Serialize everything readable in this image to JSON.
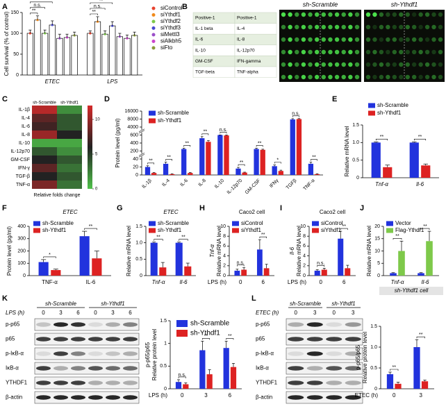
{
  "chart_data": [
    {
      "type": "bar",
      "panel": "A",
      "ylabel": "Cell survival (% of control)",
      "categories": [
        "ETEC",
        "LPS"
      ],
      "ylim": [
        0,
        150
      ],
      "yticks": [
        0,
        50,
        100,
        150
      ],
      "series": [
        {
          "name": "siControl",
          "color": "#e8432f",
          "values": [
            100,
            100
          ],
          "errors": [
            8,
            6
          ]
        },
        {
          "name": "siYthdf1",
          "color": "#f08a1c",
          "values": [
            132,
            128
          ],
          "errors": [
            10,
            12
          ]
        },
        {
          "name": "siYthdf2",
          "color": "#7ec94a",
          "values": [
            100,
            98
          ],
          "errors": [
            8,
            8
          ]
        },
        {
          "name": "siYthdf3",
          "color": "#4a4ad0",
          "values": [
            120,
            118
          ],
          "errors": [
            10,
            10
          ]
        },
        {
          "name": "siMettl3",
          "color": "#9b4fc9",
          "values": [
            88,
            92
          ],
          "errors": [
            10,
            8
          ]
        },
        {
          "name": "siAlkbh5",
          "color": "#cc44cc",
          "values": [
            90,
            88
          ],
          "errors": [
            8,
            8
          ]
        },
        {
          "name": "siFto",
          "color": "#8a9a3a",
          "values": [
            95,
            95
          ],
          "errors": [
            8,
            8
          ]
        }
      ],
      "significance": [
        [
          "**",
          "n.s.",
          "**",
          "**",
          "n.s."
        ],
        [
          "**",
          "n.s.",
          "**",
          "**",
          "n.s."
        ]
      ]
    },
    {
      "type": "dot-array",
      "panel": "B",
      "arrays": [
        "sh-Scramble",
        "sh-Ythdf1"
      ],
      "table": [
        [
          "Positive-1",
          "Positive-1"
        ],
        [
          "IL-1 beta",
          "IL-4"
        ],
        [
          "IL-6",
          "IL-8"
        ],
        [
          "IL-10",
          "IL-12p70"
        ],
        [
          "GM-CSF",
          "IFN-gamma"
        ],
        [
          "TGF-beta",
          "TNF-alpha"
        ]
      ]
    },
    {
      "type": "heatmap",
      "panel": "C",
      "columns": [
        "sh-Scramble",
        "sh-Ythdf1"
      ],
      "rows": [
        "IL-1β",
        "IL-4",
        "IL-6",
        "IL-8",
        "IL-10",
        "IL-12p70",
        "GM-CSF",
        "IFN-γ",
        "TGF-β",
        "TNF-α"
      ],
      "values": [
        [
          11,
          2
        ],
        [
          8,
          4
        ],
        [
          7,
          4
        ],
        [
          10,
          6
        ],
        [
          1,
          1
        ],
        [
          4,
          2
        ],
        [
          6,
          4
        ],
        [
          8,
          3
        ],
        [
          6,
          4
        ],
        [
          9,
          3
        ]
      ],
      "zlim": [
        0,
        12
      ],
      "zticks": [
        0,
        5,
        10
      ],
      "colors": [
        "#4fc24a",
        "#222222",
        "#d42a2a"
      ],
      "caption": "Relative folds change"
    },
    {
      "type": "bar",
      "panel": "D",
      "ylabel": "Protein level (pg/ml)",
      "broken_axis": true,
      "categories": [
        "IL-1β",
        "IL-4",
        "IL-6",
        "IL-8",
        "IL-10",
        "IL-12p70",
        "GM-CSF",
        "IFNγ",
        "TGFβ",
        "TNF-α"
      ],
      "ylim": [
        0,
        16000
      ],
      "yticks": [
        0,
        20,
        40,
        200,
        400,
        600,
        4000,
        8000,
        16000
      ],
      "series": [
        {
          "name": "sh-Scramble",
          "color": "#2233dd",
          "values": [
            20,
            28,
            250,
            520,
            600,
            16,
            250,
            22,
            7800,
            28
          ],
          "errors": [
            3,
            4,
            20,
            40,
            30,
            3,
            20,
            3,
            600,
            4
          ]
        },
        {
          "name": "sh-Ythdf1",
          "color": "#dd2222",
          "values": [
            5,
            2,
            5,
            430,
            590,
            6,
            230,
            10,
            8000,
            2
          ],
          "errors": [
            1,
            1,
            1,
            30,
            30,
            1,
            15,
            2,
            500,
            1
          ]
        }
      ],
      "significance": [
        "**",
        "**",
        "**",
        "**",
        "n.s.",
        "**",
        "**",
        "*",
        "n.s.",
        "**"
      ]
    },
    {
      "type": "bar",
      "panel": "E",
      "ylabel": "Relative mRNA level",
      "categories": [
        "Tnf-α",
        "Il-6"
      ],
      "ylim": [
        0,
        1.5
      ],
      "yticks": [
        0,
        0.5,
        {
          "value": 1,
          "label": "1.0"
        },
        1.5
      ],
      "series": [
        {
          "name": "sh-Scramble",
          "color": "#2233dd",
          "values": [
            1,
            1
          ],
          "errors": [
            0.02,
            0.02
          ]
        },
        {
          "name": "sh-Ythdf1",
          "color": "#dd2222",
          "values": [
            0.3,
            0.35
          ],
          "errors": [
            0.06,
            0.04
          ]
        }
      ],
      "significance": [
        "**",
        "**"
      ]
    },
    {
      "type": "bar",
      "panel": "F",
      "title": "ETEC",
      "ylabel": "Protein level (pg/ml)",
      "categories": [
        "TNF-α",
        "IL-6"
      ],
      "ylim": [
        0,
        400
      ],
      "yticks": [
        0,
        100,
        200,
        300,
        400
      ],
      "series": [
        {
          "name": "sh-Scramble",
          "color": "#2233dd",
          "values": [
            110,
            320
          ],
          "errors": [
            20,
            40
          ]
        },
        {
          "name": "sh-Ythdf1",
          "color": "#dd2222",
          "values": [
            45,
            140
          ],
          "errors": [
            8,
            60
          ]
        }
      ],
      "significance": [
        "*",
        "**"
      ]
    },
    {
      "type": "bar",
      "panel": "G",
      "title": "ETEC",
      "ylabel": "Relative mRNA level",
      "categories": [
        "Tnf-α",
        "Il-6"
      ],
      "ylim": [
        0,
        1.5
      ],
      "yticks": [
        0,
        0.5,
        {
          "value": 1,
          "label": "1.0"
        },
        1.5
      ],
      "series": [
        {
          "name": "sh-Scramble",
          "color": "#2233dd",
          "values": [
            1,
            1
          ],
          "errors": [
            0.02,
            0.02
          ]
        },
        {
          "name": "sh-Ythdf1",
          "color": "#dd2222",
          "values": [
            0.25,
            0.28
          ],
          "errors": [
            0.15,
            0.1
          ]
        }
      ],
      "significance": [
        "**",
        "**"
      ]
    },
    {
      "type": "bar",
      "panel": "H",
      "title": "Caco2 cell",
      "ylabel": [
        "Tnf-α",
        "Relative mRNA level"
      ],
      "xlabel": "LPS (h)",
      "categories": [
        0,
        6
      ],
      "ylim": [
        0,
        10
      ],
      "yticks": [
        0,
        2,
        4,
        6,
        8,
        10
      ],
      "series": [
        {
          "name": "siControl",
          "color": "#2233dd",
          "values": [
            1,
            5.3
          ],
          "errors": [
            0.3,
            2
          ]
        },
        {
          "name": "siYthdf1",
          "color": "#dd2222",
          "values": [
            1.2,
            1.5
          ],
          "errors": [
            0.4,
            0.8
          ]
        }
      ],
      "significance": [
        "n.s.",
        "**"
      ]
    },
    {
      "type": "bar",
      "panel": "I",
      "title": "Caco2 cell",
      "ylabel": [
        "Il-6",
        "Relative mRNA level"
      ],
      "xlabel": "LPS (h)",
      "categories": [
        0,
        6
      ],
      "ylim": [
        0,
        10
      ],
      "yticks": [
        0,
        2,
        4,
        6,
        8,
        10
      ],
      "series": [
        {
          "name": "siControl",
          "color": "#2233dd",
          "values": [
            1,
            7.5
          ],
          "errors": [
            0.2,
            1.5
          ]
        },
        {
          "name": "siYthdf1",
          "color": "#dd2222",
          "values": [
            1.2,
            1.5
          ],
          "errors": [
            0.3,
            0.6
          ]
        }
      ],
      "significance": [
        "n.s.",
        "**"
      ]
    },
    {
      "type": "bar",
      "panel": "J",
      "ylabel": "Relative mRNA level",
      "categories": [
        "Tnf-α",
        "Il-6"
      ],
      "caption": "sh-Ythdf1 cell",
      "ylim": [
        0,
        20
      ],
      "yticks": [
        0,
        5,
        10,
        15,
        20
      ],
      "series": [
        {
          "name": "Vector",
          "color": "#2233dd",
          "values": [
            1,
            1
          ],
          "errors": [
            0.2,
            0.2
          ]
        },
        {
          "name": "Flag-Ythdf1",
          "color": "#7ec94a",
          "values": [
            10,
            14
          ],
          "errors": [
            4,
            4
          ]
        }
      ],
      "significance": [
        "**",
        "**"
      ]
    },
    {
      "type": "blot",
      "panel": "K",
      "condition_label": "LPS (h)",
      "groups": [
        "sh-Scramble",
        "sh-Ythdf1"
      ],
      "lanes": [
        0,
        3,
        6,
        0,
        3,
        6
      ],
      "rows": [
        "p-p65",
        "p65",
        "p-IκB-α",
        "IκB-α",
        "YTHDF1",
        "β-actin"
      ]
    },
    {
      "type": "bar",
      "ylabel": [
        "p-p65/p65",
        "Relative protein level"
      ],
      "xlabel": "LPS (h)",
      "categories": [
        0,
        3,
        6
      ],
      "ylim": [
        0,
        1.5
      ],
      "yticks": [
        0,
        0.5,
        1,
        1.5
      ],
      "series": [
        {
          "name": "sh-Scramble",
          "color": "#2233dd",
          "values": [
            0.15,
            0.85,
            0.9
          ],
          "errors": [
            0.05,
            0.2,
            0.15
          ]
        },
        {
          "name": "sh-Ythdf1",
          "color": "#dd2222",
          "values": [
            0.1,
            0.32,
            0.48
          ],
          "errors": [
            0.03,
            0.1,
            0.08
          ]
        }
      ],
      "significance": [
        "n.s.",
        "**",
        "**"
      ]
    },
    {
      "type": "blot",
      "panel": "L",
      "condition_label": "ETEC (h)",
      "groups": [
        "sh-Scramble",
        "sh-Ythdf1"
      ],
      "lanes": [
        0,
        3,
        0,
        3
      ],
      "rows": [
        "p-p65",
        "p65",
        "p-IκB-α",
        "IκB-α",
        "YTHDF1",
        "β-actin"
      ]
    },
    {
      "type": "bar",
      "ylabel": [
        "p-p65/p65",
        "Relative protein level"
      ],
      "xlabel": "ETEC (h)",
      "categories": [
        0,
        3
      ],
      "ylim": [
        0,
        1.5
      ],
      "yticks": [
        0,
        0.5,
        {
          "value": 1,
          "label": "1.0"
        },
        1.5
      ],
      "series": [
        {
          "name": "sh-Scramble",
          "color": "#2233dd",
          "values": [
            0.35,
            1
          ],
          "errors": [
            0.05,
            0.18
          ]
        },
        {
          "name": "sh-Ythdf1",
          "color": "#dd2222",
          "values": [
            0.12,
            0.18
          ],
          "errors": [
            0.04,
            0.03
          ]
        }
      ],
      "significance": [
        "**",
        "**"
      ]
    }
  ]
}
